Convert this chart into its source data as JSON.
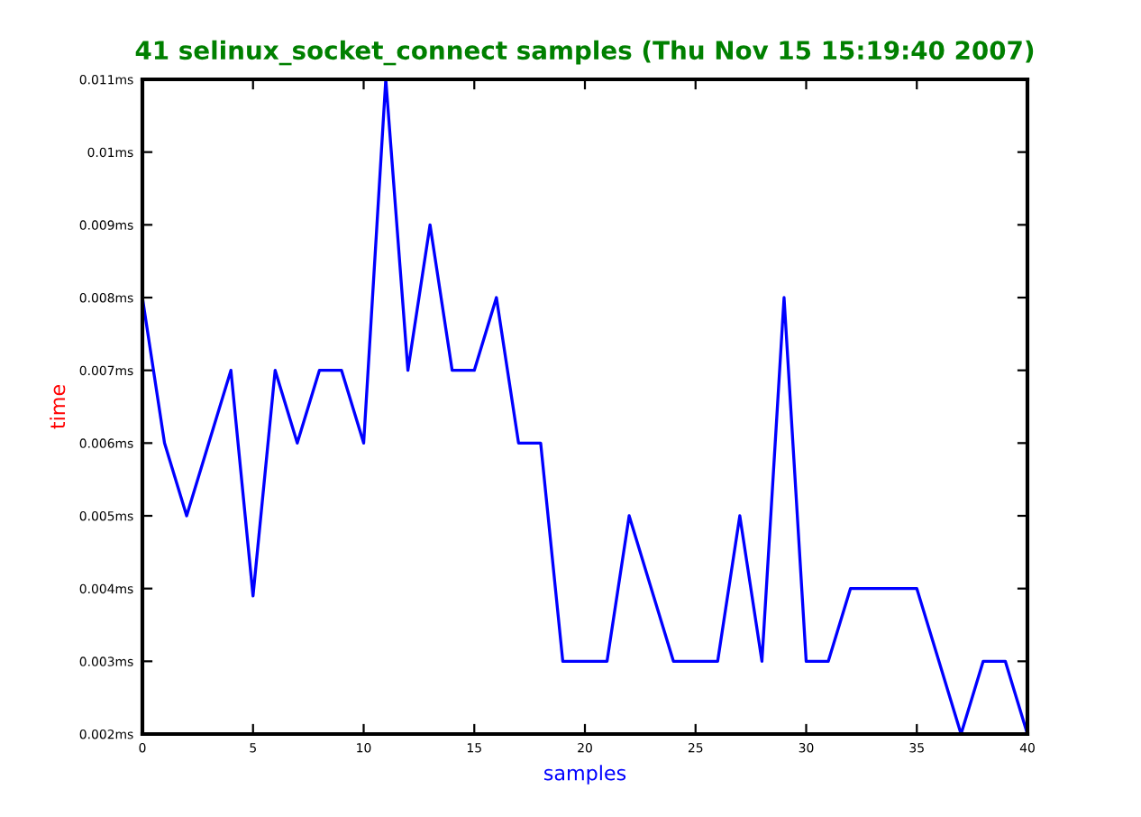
{
  "chart_data": {
    "type": "line",
    "title": "41 selinux_socket_connect samples (Thu Nov 15 15:19:40 2007)",
    "xlabel": "samples",
    "ylabel": "time",
    "x": [
      0,
      1,
      2,
      3,
      4,
      5,
      6,
      7,
      8,
      9,
      10,
      11,
      12,
      13,
      14,
      15,
      16,
      17,
      18,
      19,
      20,
      21,
      22,
      23,
      24,
      25,
      26,
      27,
      28,
      29,
      30,
      31,
      32,
      33,
      34,
      35,
      36,
      37,
      38,
      39,
      40
    ],
    "series": [
      {
        "color": "#0000ff",
        "values": [
          0.008,
          0.006,
          0.005,
          0.006,
          0.007,
          0.0039,
          0.007,
          0.006,
          0.007,
          0.007,
          0.006,
          0.011,
          0.007,
          0.009,
          0.007,
          0.007,
          0.008,
          0.006,
          0.006,
          0.003,
          0.003,
          0.003,
          0.005,
          0.004,
          0.003,
          0.003,
          0.003,
          0.005,
          0.003,
          0.008,
          0.003,
          0.003,
          0.004,
          0.004,
          0.004,
          0.004,
          0.003,
          0.002,
          0.003,
          0.003,
          0.002
        ]
      }
    ],
    "xlim": [
      0,
      40
    ],
    "xticks": [
      0,
      5,
      10,
      15,
      20,
      25,
      30,
      35,
      40
    ],
    "ylim": [
      0.002,
      0.011
    ],
    "yticks": [
      {
        "value": 0.002,
        "label": "0.002ms"
      },
      {
        "value": 0.003,
        "label": "0.003ms"
      },
      {
        "value": 0.004,
        "label": "0.004ms"
      },
      {
        "value": 0.005,
        "label": "0.005ms"
      },
      {
        "value": 0.006,
        "label": "0.006ms"
      },
      {
        "value": 0.007,
        "label": "0.007ms"
      },
      {
        "value": 0.008,
        "label": "0.008ms"
      },
      {
        "value": 0.009,
        "label": "0.009ms"
      },
      {
        "value": 0.01,
        "label": "0.01ms"
      },
      {
        "value": 0.011,
        "label": "0.011ms"
      }
    ],
    "grid": false,
    "legend": false,
    "marker": "none",
    "line_style": "solid"
  }
}
